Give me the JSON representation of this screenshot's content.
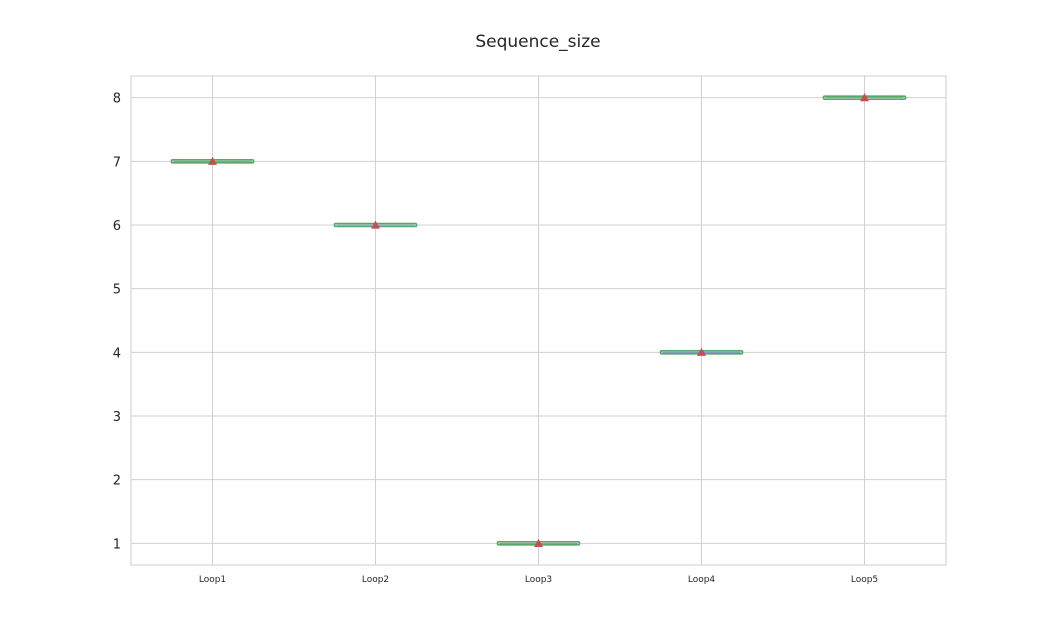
{
  "chart_data": {
    "type": "box",
    "title": "Sequence_size",
    "xlabel": "",
    "ylabel": "",
    "categories": [
      "Loop1",
      "Loop2",
      "Loop3",
      "Loop4",
      "Loop5"
    ],
    "values": [
      7,
      6,
      1,
      4,
      8
    ],
    "means": [
      7,
      6,
      1,
      4,
      8
    ],
    "ylim": [
      0.66,
      8.34
    ],
    "yticks": [
      1,
      2,
      3,
      4,
      5,
      6,
      7,
      8
    ],
    "grid": true,
    "legend": "none",
    "colors": {
      "box": "#55a868",
      "median": "#4c72b0",
      "mean_marker": "#c44e52",
      "grid": "#d0d0d0",
      "frame": "#cccccc",
      "text": "#262626"
    }
  }
}
